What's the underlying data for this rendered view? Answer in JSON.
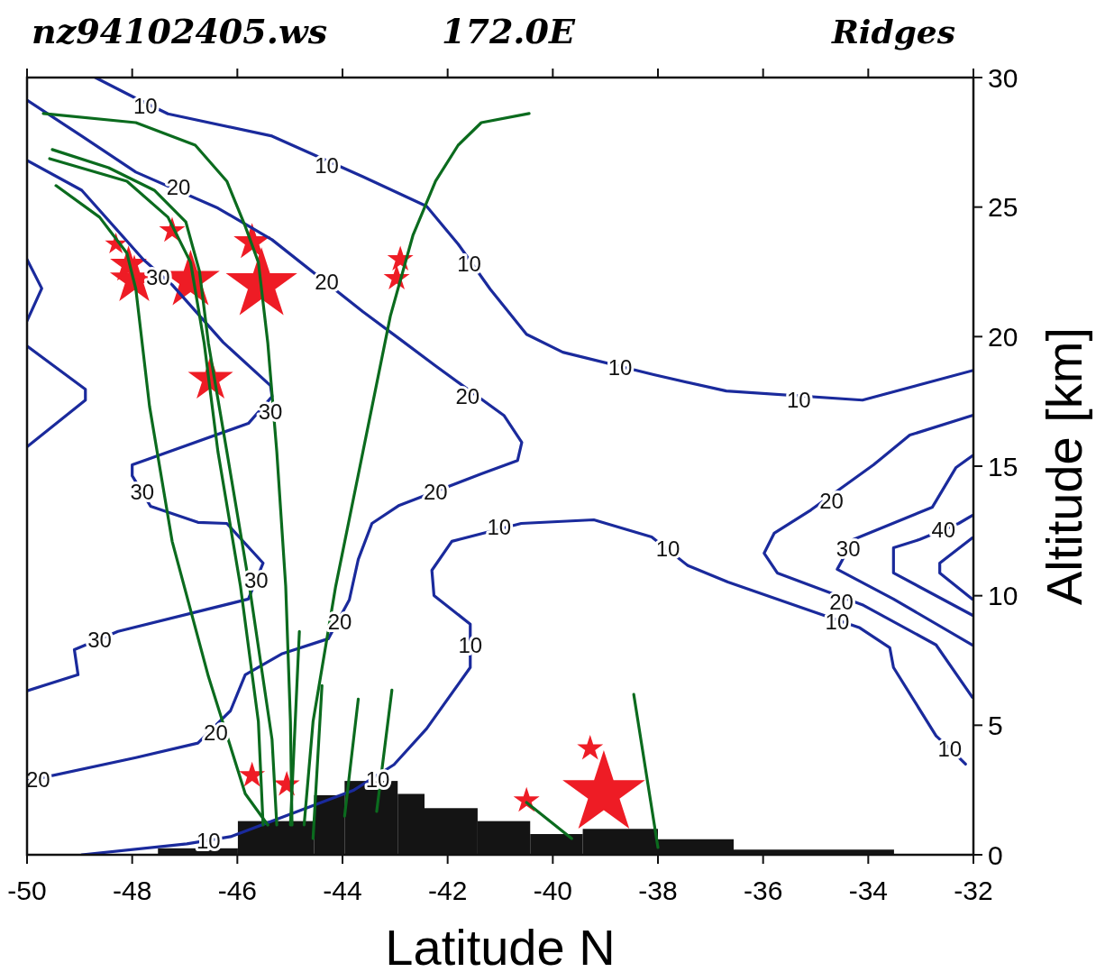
{
  "chart_data": {
    "type": "line",
    "title": "nz94102405.ws",
    "subtitle": "172.0E",
    "xlabel": "Latitude N",
    "ylabel": "Altitude [km]",
    "xlim": [
      -50,
      -32
    ],
    "ylim": [
      0,
      30
    ],
    "xticks": [
      -50,
      -48,
      -46,
      -44,
      -42,
      -40,
      -38,
      -36,
      -34,
      -32
    ],
    "yticks": [
      0,
      5,
      10,
      15,
      20,
      25,
      30
    ],
    "grid": false,
    "annotations": [
      "Ridges",
      {
        "text": "10",
        "x": -47.75,
        "y": 28.9
      },
      {
        "text": "10",
        "x": -44.3,
        "y": 26.6
      },
      {
        "text": "10",
        "x": -41.59,
        "y": 22.8
      },
      {
        "text": "10",
        "x": -38.72,
        "y": 18.8
      },
      {
        "text": "10",
        "x": -35.32,
        "y": 17.55
      },
      {
        "text": "20",
        "x": -47.12,
        "y": 25.76
      },
      {
        "text": "20",
        "x": -44.3,
        "y": 22.1
      },
      {
        "text": "20",
        "x": -41.62,
        "y": 17.7
      },
      {
        "text": "20",
        "x": -42.23,
        "y": 14.0
      },
      {
        "text": "20",
        "x": -44.05,
        "y": 9.0
      },
      {
        "text": "20",
        "x": -46.41,
        "y": 4.7
      },
      {
        "text": "20",
        "x": -49.79,
        "y": 2.9
      },
      {
        "text": "30",
        "x": -47.51,
        "y": 22.3
      },
      {
        "text": "30",
        "x": -45.37,
        "y": 17.1
      },
      {
        "text": "30",
        "x": -47.81,
        "y": 14.0
      },
      {
        "text": "30",
        "x": -45.64,
        "y": 10.6
      },
      {
        "text": "30",
        "x": -48.62,
        "y": 8.3
      },
      {
        "text": "10",
        "x": -46.55,
        "y": 0.55
      },
      {
        "text": "10",
        "x": -43.33,
        "y": 2.9
      },
      {
        "text": "10",
        "x": -41.57,
        "y": 8.1
      },
      {
        "text": "10",
        "x": -41.02,
        "y": 12.65
      },
      {
        "text": "10",
        "x": -37.81,
        "y": 11.8
      },
      {
        "text": "10",
        "x": -34.59,
        "y": 9.0
      },
      {
        "text": "10",
        "x": -32.45,
        "y": 4.1
      },
      {
        "text": "20",
        "x": -34.7,
        "y": 13.66
      },
      {
        "text": "20",
        "x": -34.51,
        "y": 9.77
      },
      {
        "text": "30",
        "x": -34.38,
        "y": 11.8
      },
      {
        "text": "40",
        "x": -32.57,
        "y": 12.55
      }
    ],
    "series": [
      {
        "type": "histogram",
        "color": "#141414",
        "bins": [
          -47.51,
          -45.99,
          -44.54,
          -43.96,
          -42.95,
          -42.44,
          -41.43,
          -40.43,
          -39.43,
          -38.0,
          -36.56,
          -33.51
        ],
        "values": [
          0.25,
          1.3,
          2.3,
          2.85,
          2.35,
          1.8,
          1.3,
          0.8,
          1.0,
          0.6,
          0.2
        ]
      },
      {
        "type": "scatter",
        "color": "#ee1c25",
        "marker": "star",
        "x": [
          -39.03,
          -45.54,
          -46.89,
          -47.96,
          -46.51,
          -48.07,
          -45.72,
          -42.97,
          -42.9,
          -40.5,
          -39.29,
          -45.72,
          -45.06,
          -48.31,
          -47.24
        ],
        "values": [
          2.36,
          22.0,
          22.17,
          22.17,
          18.35,
          22.77,
          23.64,
          22.25,
          22.98,
          2.09,
          4.1,
          3.06,
          2.71,
          23.57,
          24.09
        ],
        "sizes": [
          1,
          0.75,
          0.5,
          0.35,
          0.3,
          0.2,
          0.2,
          0.1,
          0.1,
          0.1,
          0.1,
          0.1,
          0.1,
          0.07,
          0.1
        ]
      },
      {
        "color": "#1a2a9c",
        "x": [
          -48.7,
          -47.93,
          -47.32,
          -45.34,
          -43.61,
          -42.4,
          -41.8,
          -41.19,
          -40.5,
          -39.81,
          -38.08,
          -36.7,
          -34.11,
          -32.0
        ],
        "values": [
          30.0,
          29.2,
          28.6,
          27.74,
          26.17,
          25.03,
          23.57,
          21.83,
          20.09,
          19.4,
          18.53,
          17.9,
          17.55,
          18.7
        ]
      },
      {
        "color": "#1a2a9c",
        "x": [
          -50,
          -48.96,
          -47.93,
          -46.37,
          -45.34,
          -43.61,
          -42.92,
          -42.23,
          -40.93,
          -40.59,
          -40.67,
          -41.36,
          -42.92,
          -43.44,
          -43.7,
          -43.87,
          -44.27,
          -45.16,
          -45.85,
          -46.13,
          -46.75,
          -47.93,
          -50
        ],
        "values": [
          29.13,
          27.74,
          26.35,
          24.96,
          23.74,
          20.96,
          19.92,
          18.87,
          16.96,
          15.92,
          15.22,
          14.7,
          13.49,
          12.79,
          11.4,
          9.84,
          8.34,
          7.75,
          6.95,
          5.56,
          4.31,
          3.75,
          2.85
        ]
      },
      {
        "color": "#1a2a9c",
        "x": [
          -50,
          -48.96,
          -47.79,
          -47.24,
          -46.27,
          -45.37,
          -45.34,
          -45.79,
          -48.0,
          -48.0,
          -47.65,
          -46.75,
          -46.2,
          -45.51,
          -45.79,
          -48.27,
          -49.1,
          -49.03,
          -50
        ],
        "values": [
          26.8,
          25.65,
          22.98,
          22.0,
          19.78,
          18.11,
          17.69,
          16.65,
          15.05,
          14.63,
          13.45,
          12.83,
          12.79,
          11.26,
          9.87,
          8.62,
          7.92,
          6.95,
          6.33
        ]
      },
      {
        "color": "#1a2a9c",
        "x": [
          -50,
          -49.72,
          -50
        ],
        "values": [
          22.98,
          21.86,
          20.61
        ]
      },
      {
        "color": "#1a2a9c",
        "x": [
          -50,
          -48.89,
          -48.89,
          -50
        ],
        "values": [
          19.64,
          17.97,
          17.55,
          15.75
        ]
      },
      {
        "color": "#1a2a9c",
        "x": [
          -48.96,
          -46.96,
          -46.13,
          -43.78,
          -43.02,
          -42.4,
          -41.57,
          -41.57,
          -42.26,
          -42.3,
          -41.92,
          -40.6,
          -39.22,
          -38.12,
          -37.43,
          -36.67,
          -35.04,
          -34.16,
          -33.59,
          -33.52,
          -32.71,
          -32.45,
          -32.15
        ],
        "values": [
          0,
          0.42,
          0.7,
          2.5,
          3.48,
          4.87,
          7.23,
          8.9,
          10.01,
          10.98,
          12.1,
          12.79,
          12.93,
          12.27,
          11.16,
          10.53,
          9.38,
          8.76,
          7.99,
          7.23,
          4.59,
          4.1,
          3.5
        ]
      },
      {
        "color": "#1a2a9c",
        "x": [
          -32.02,
          -33.21,
          -33.9,
          -35.09,
          -35.79,
          -35.98,
          -35.73,
          -34.09,
          -32.71,
          -32.02
        ],
        "values": [
          16.96,
          16.2,
          15.05,
          13.31,
          12.41,
          11.64,
          10.88,
          9.63,
          8.1,
          6.08
        ]
      },
      {
        "color": "#1a2a9c",
        "x": [
          -32.02,
          -32.33,
          -32.78,
          -34.28,
          -34.59,
          -33.52,
          -32.02
        ],
        "values": [
          15.4,
          14.95,
          13.42,
          12.17,
          11.02,
          9.87,
          8.1
        ]
      },
      {
        "color": "#1a2a9c",
        "x": [
          -32.02,
          -32.28,
          -33.02,
          -33.52,
          -33.52,
          -32.02
        ],
        "values": [
          13.1,
          12.79,
          12.17,
          11.85,
          10.88,
          9.25
        ]
      },
      {
        "color": "#1a2a9c",
        "x": [
          -32.02,
          -32.64,
          -32.64,
          -32.02
        ],
        "values": [
          12.23,
          11.26,
          10.88,
          9.87
        ]
      },
      {
        "color": "#0b6b1e",
        "x": [
          -49.69,
          -47.93,
          -46.8,
          -46.2,
          -45.85,
          -45.6,
          -45.42,
          -45.25,
          -45.08,
          -44.99,
          -44.96
        ],
        "values": [
          28.61,
          28.26,
          27.39,
          26.0,
          24.26,
          22.87,
          19.74,
          15.57,
          10.36,
          5.14,
          1.15
        ]
      },
      {
        "color": "#0b6b1e",
        "x": [
          -49.52,
          -48.45,
          -47.58,
          -46.98,
          -46.72,
          -46.55,
          -46.2,
          -45.77,
          -45.34,
          -45.25
        ],
        "values": [
          27.22,
          26.52,
          25.65,
          24.43,
          22.52,
          19.74,
          15.57,
          10.36,
          4.45,
          1.15
        ]
      },
      {
        "color": "#0b6b1e",
        "x": [
          -49.45,
          -48.62,
          -48.1,
          -47.93,
          -47.67,
          -47.24,
          -46.55,
          -45.85,
          -45.42
        ],
        "values": [
          25.83,
          24.61,
          23.22,
          21.83,
          17.31,
          12.1,
          6.88,
          2.36,
          1.15
        ]
      },
      {
        "color": "#0b6b1e",
        "x": [
          -40.45,
          -41.36,
          -41.8,
          -42.23,
          -42.66,
          -43.09,
          -43.61,
          -44.13,
          -44.56,
          -44.73
        ],
        "values": [
          28.61,
          28.26,
          27.39,
          26.0,
          23.91,
          20.79,
          15.57,
          10.36,
          5.14,
          1.15
        ]
      },
      {
        "color": "#0b6b1e",
        "x": [
          -49.57,
          -48.1,
          -47.32,
          -46.89,
          -46.63,
          -46.37,
          -45.94,
          -45.6,
          -45.51
        ],
        "values": [
          26.87,
          26.0,
          24.61,
          22.87,
          19.74,
          15.57,
          10.36,
          5.14,
          1.15
        ]
      },
      {
        "color": "#0b6b1e",
        "x": [
          -44.82,
          -44.99
        ],
        "values": [
          8.62,
          1.15
        ]
      },
      {
        "color": "#0b6b1e",
        "x": [
          -44.39,
          -44.56
        ],
        "values": [
          6.53,
          0.63
        ]
      },
      {
        "color": "#0b6b1e",
        "x": [
          -43.7,
          -43.96
        ],
        "values": [
          6.01,
          1.49
        ]
      },
      {
        "color": "#0b6b1e",
        "x": [
          -43.06,
          -43.35
        ],
        "values": [
          6.36,
          1.67
        ]
      },
      {
        "color": "#0b6b1e",
        "x": [
          -38.46,
          -38.0
        ],
        "values": [
          6.19,
          0.28
        ]
      },
      {
        "color": "#0b6b1e",
        "x": [
          -40.5,
          -39.64
        ],
        "values": [
          2.02,
          0.63
        ]
      }
    ]
  }
}
